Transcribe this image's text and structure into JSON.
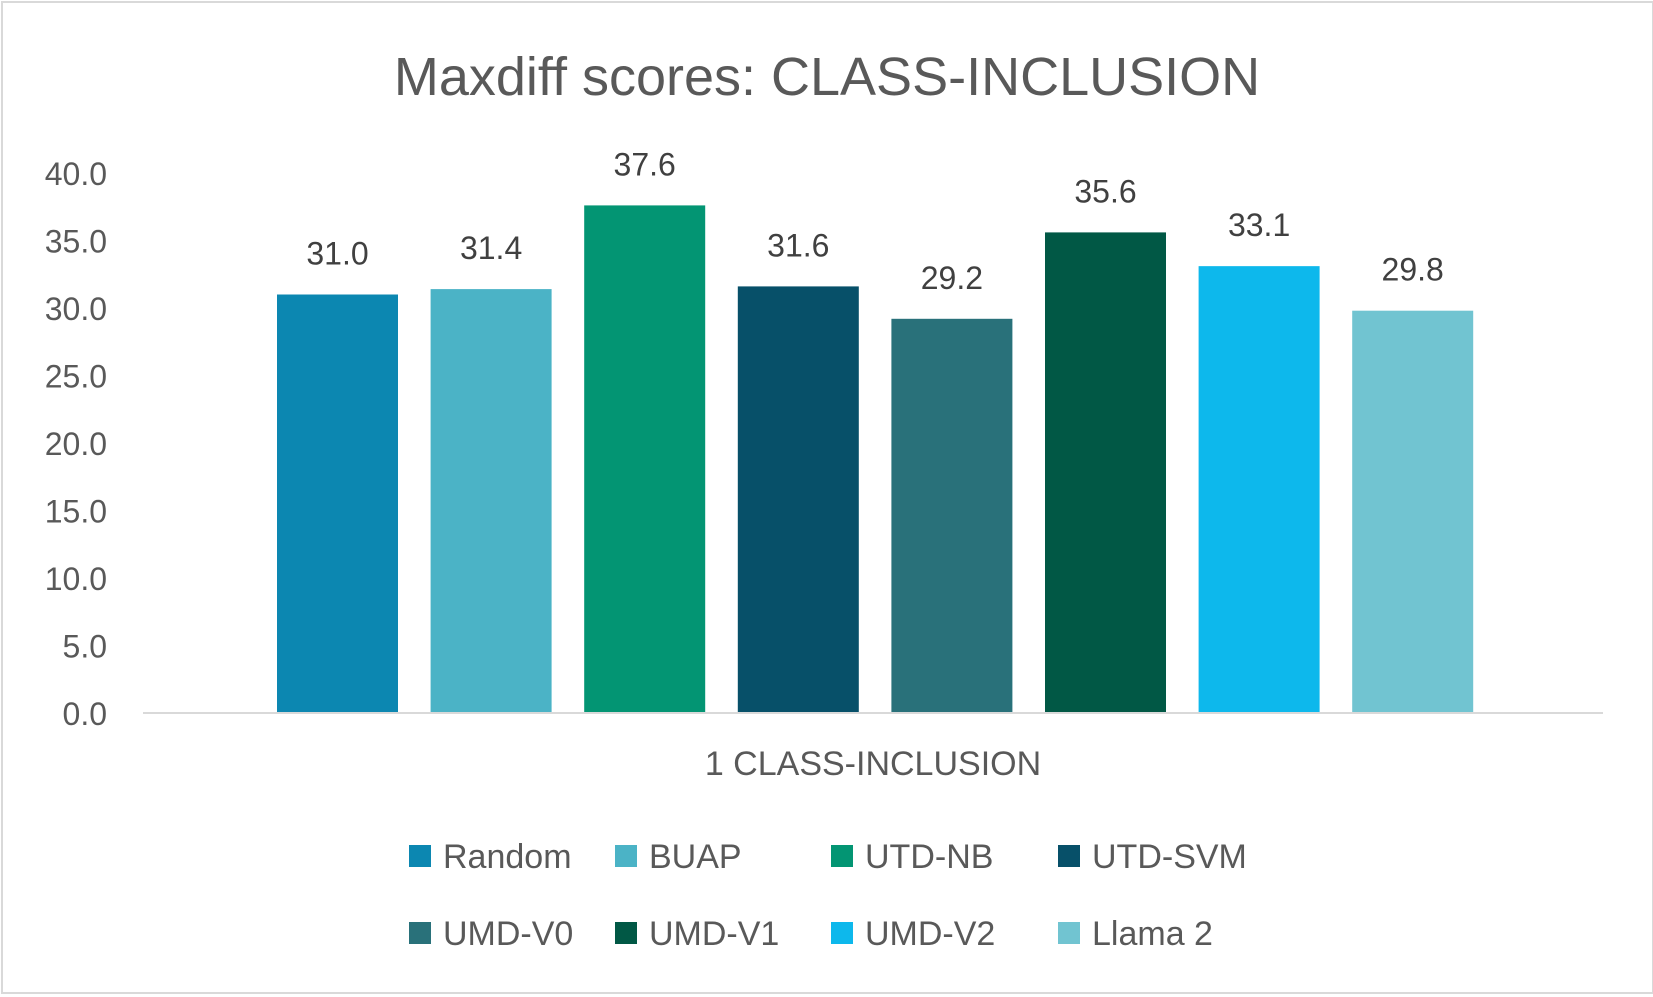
{
  "chart_data": {
    "type": "bar",
    "title": "Maxdiff scores: CLASS-INCLUSION",
    "category_label": "1 CLASS-INCLUSION",
    "ylim": [
      0,
      40
    ],
    "y_ticks": [
      "0.0",
      "5.0",
      "10.0",
      "15.0",
      "20.0",
      "25.0",
      "30.0",
      "35.0",
      "40.0"
    ],
    "grid": false,
    "legend_position": "bottom",
    "series": [
      {
        "name": "Random",
        "value": 31.0,
        "label": "31.0",
        "color": "#0c87b1"
      },
      {
        "name": "BUAP",
        "value": 31.4,
        "label": "31.4",
        "color": "#4bb3c6"
      },
      {
        "name": "UTD-NB",
        "value": 37.6,
        "label": "37.6",
        "color": "#039573"
      },
      {
        "name": "UTD-SVM",
        "value": 31.6,
        "label": "31.6",
        "color": "#075069"
      },
      {
        "name": "UMD-V0",
        "value": 29.2,
        "label": "29.2",
        "color": "#29717a"
      },
      {
        "name": "UMD-V1",
        "value": 35.6,
        "label": "35.6",
        "color": "#015845"
      },
      {
        "name": "UMD-V2",
        "value": 33.1,
        "label": "33.1",
        "color": "#0db8ec"
      },
      {
        "name": "Llama 2",
        "value": 29.8,
        "label": "29.8",
        "color": "#71c4d1"
      }
    ]
  }
}
